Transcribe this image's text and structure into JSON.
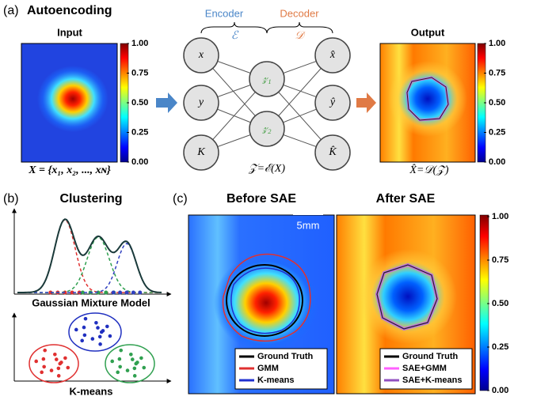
{
  "panel_a": {
    "label": "(a)",
    "title": "Autoencoding",
    "input_title": "Input",
    "output_title": "Output",
    "input_caption": "X = {x₁, x₂, ..., xɴ}",
    "output_caption": "X̂=𝒟(𝒵)",
    "encoder": "Encoder",
    "decoder": "Decoder",
    "encoder_symbol": "ℰ",
    "decoder_symbol": "𝒟",
    "latent_caption": "𝒵=ℰ(X)",
    "input_nodes": [
      "x",
      "y",
      "K"
    ],
    "latent_nodes": [
      "𝓏₁",
      "𝓏₂"
    ],
    "output_nodes": [
      "x̂",
      "ŷ",
      "K̂"
    ]
  },
  "colorbar_ticks": [
    "1.00",
    "0.75",
    "0.50",
    "0.25",
    "0.00"
  ],
  "panel_b": {
    "label": "(b)",
    "title": "Clustering",
    "gmm_caption": "Gaussian Mixture Model",
    "kmeans_caption": "K-means"
  },
  "panel_c": {
    "label": "(c)",
    "before_title": "Before SAE",
    "after_title": "After SAE",
    "scale_bar": "5mm",
    "before_legend": [
      "Ground Truth",
      "GMM",
      "K-means"
    ],
    "after_legend": [
      "Ground Truth",
      "SAE+GMM",
      "SAE+K-means"
    ]
  }
}
